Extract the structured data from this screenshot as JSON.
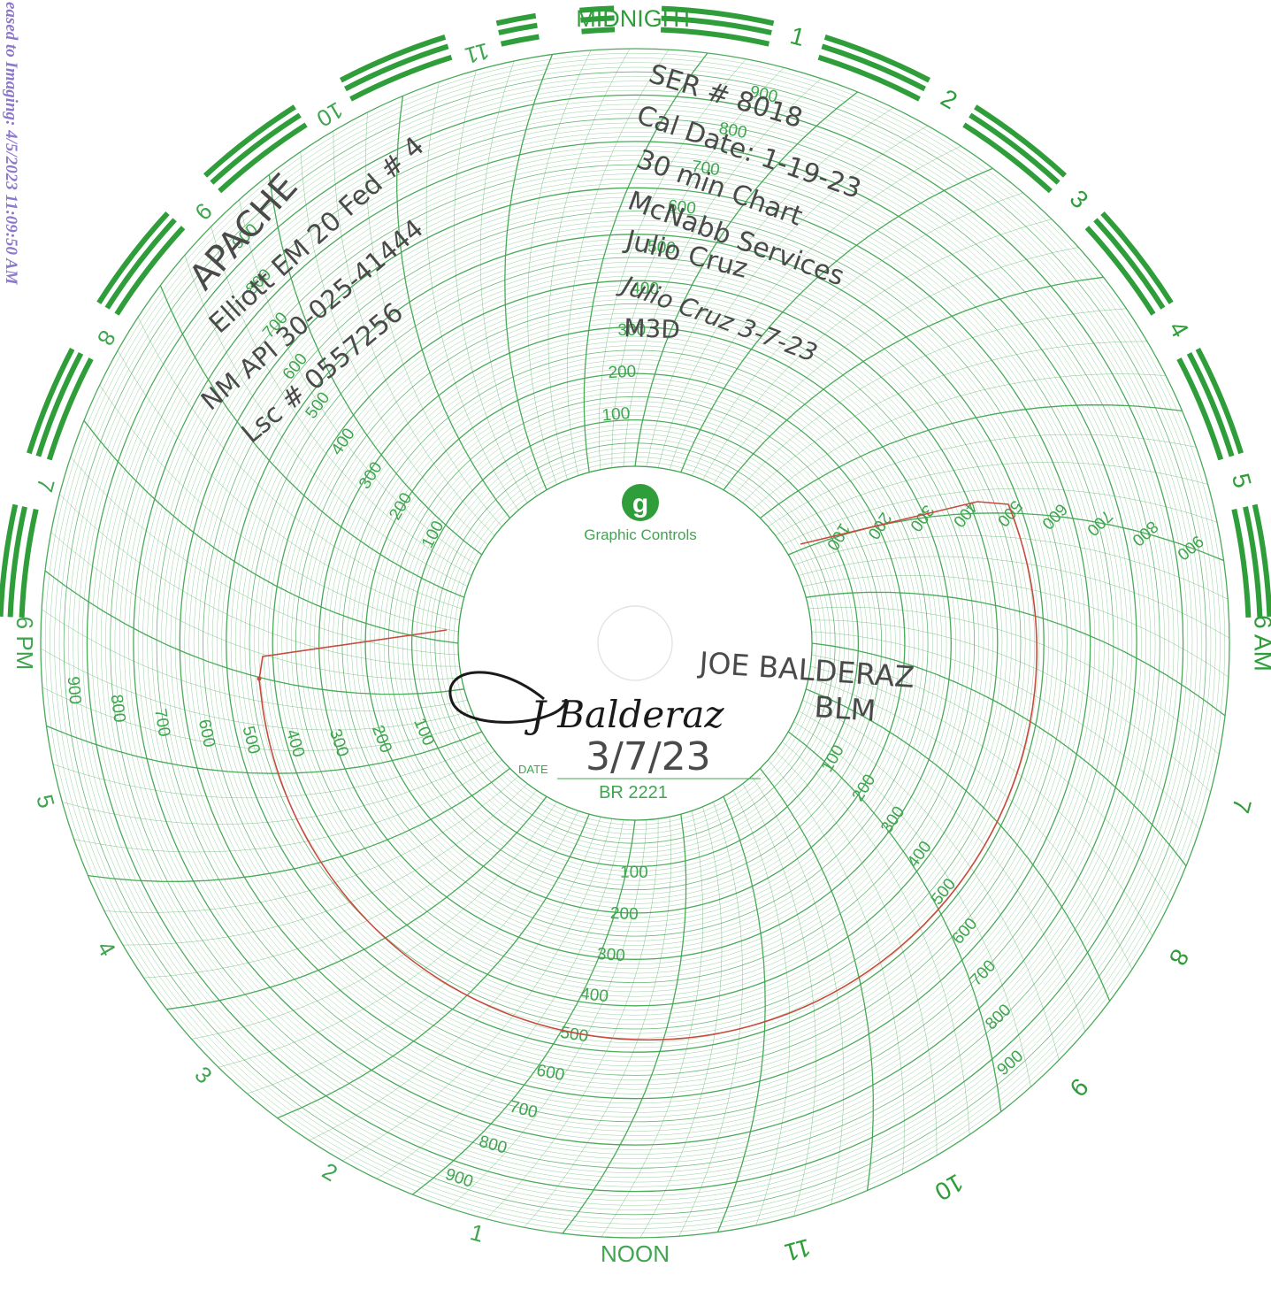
{
  "stamp": "eased to Imaging: 4/5/2023 11:09:50 AM",
  "chart": {
    "brand": "Graphic Controls",
    "brand_logo_letter": "g",
    "date_label": "DATE",
    "model": "BR 2221",
    "hour_labels": {
      "am": [
        "MIDNIGHT",
        "1",
        "2",
        "3",
        "4",
        "5",
        "6 AM",
        "7",
        "8",
        "9",
        "10",
        "11"
      ],
      "pm": [
        "NOON",
        "1",
        "2",
        "3",
        "4",
        "5",
        "6 PM",
        "7",
        "8",
        "9",
        "10",
        "11"
      ]
    },
    "scale_labels": [
      "100",
      "200",
      "300",
      "400",
      "500",
      "600",
      "700",
      "800",
      "900"
    ],
    "color": "#3fa54f",
    "bar_color": "#2f9e3a",
    "pen_color": "#c94a3e"
  },
  "annotations": {
    "company": "APACHE",
    "well": "Elliott EM 20 Fed # 4",
    "api": "NM API 30-025-41444",
    "lease": "Lsc # 0557256",
    "serial": "SER # 8018",
    "cal_date": "Cal Date: 1-19-23",
    "chart_type": "30 min Chart",
    "service": "McNabb Services",
    "tech_name": "Julio Cruz",
    "tech_signature": "Julio Cruz 3-7-23",
    "initials": "M3D",
    "witness_name": "JOE BALDERAZ",
    "witness_org": "BLM",
    "witness_signature": "J Balderaz",
    "date": "3/7/23"
  }
}
